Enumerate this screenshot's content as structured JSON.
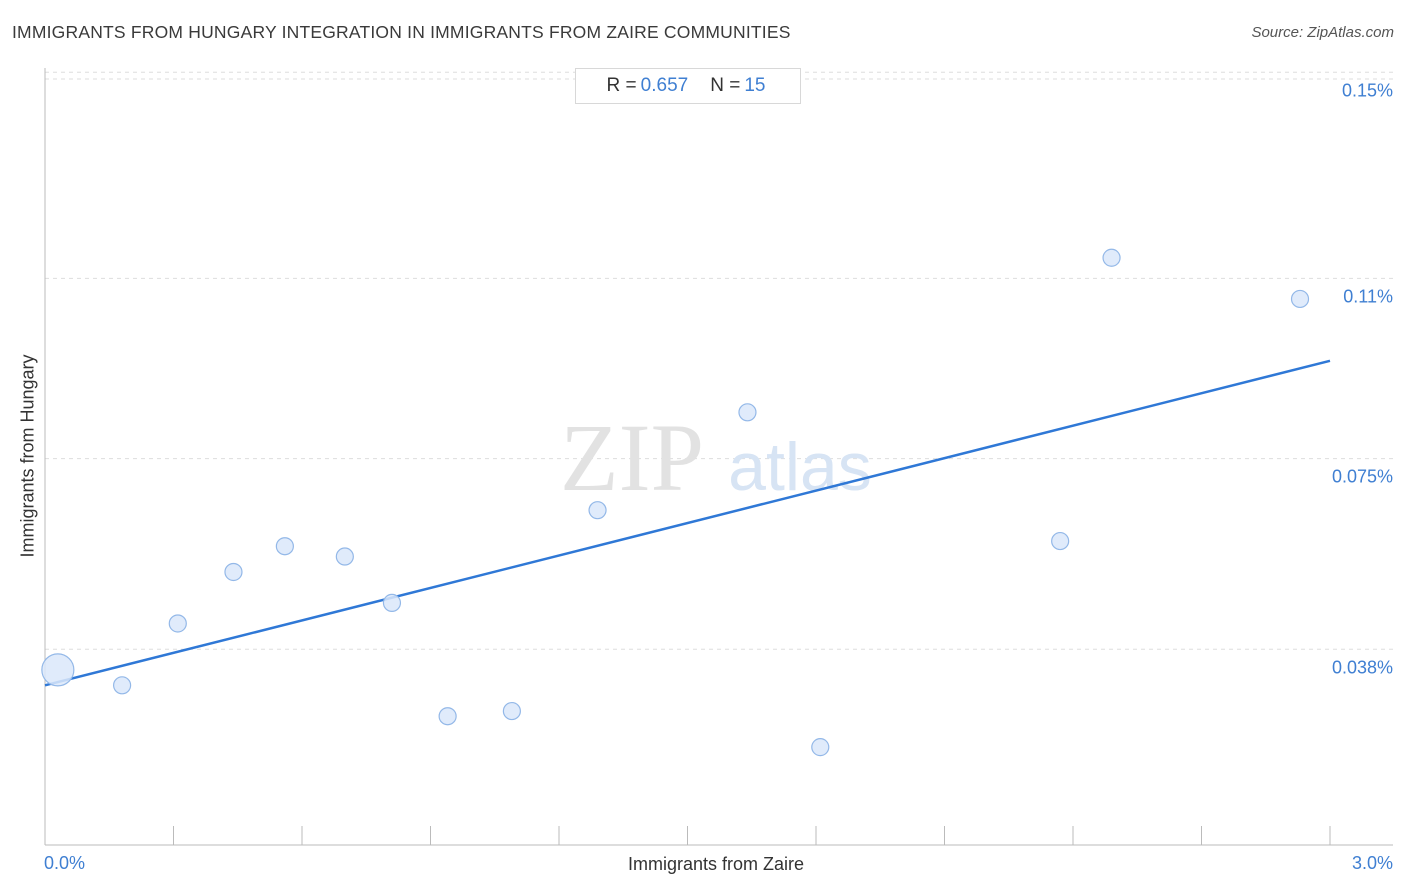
{
  "title": "IMMIGRANTS FROM HUNGARY INTEGRATION IN IMMIGRANTS FROM ZAIRE COMMUNITIES",
  "source": "Source: ZipAtlas.com",
  "stats": {
    "r_label": "R =",
    "r_value": "0.657",
    "n_label": "N =",
    "n_value": "15"
  },
  "watermark": {
    "zip": "ZIP",
    "atlas": "atlas"
  },
  "colors": {
    "accent": "#3f7fd2",
    "point_fill": "#dbe8fa",
    "point_stroke": "#93b8e8",
    "trend": "#2f78d6",
    "grid": "#dddddd"
  },
  "chart_data": {
    "type": "scatter",
    "title": "IMMIGRANTS FROM HUNGARY INTEGRATION IN IMMIGRANTS FROM ZAIRE COMMUNITIES",
    "xlabel": "Immigrants from Zaire",
    "ylabel": "Immigrants from Hungary",
    "xlim": [
      0,
      3.0
    ],
    "ylim": [
      0.0,
      0.152
    ],
    "x_tick_labels": [
      "0.0%",
      "3.0%"
    ],
    "y_ticks": [
      {
        "value": 0.15,
        "label": "0.15%"
      },
      {
        "value": 0.11,
        "label": "0.11%"
      },
      {
        "value": 0.075,
        "label": "0.075%"
      },
      {
        "value": 0.038,
        "label": "0.038%"
      }
    ],
    "grid": true,
    "points": [
      {
        "x": 0.03,
        "y": 0.034,
        "size": 3
      },
      {
        "x": 0.18,
        "y": 0.031,
        "size": 1
      },
      {
        "x": 0.31,
        "y": 0.043,
        "size": 1
      },
      {
        "x": 0.44,
        "y": 0.053,
        "size": 1
      },
      {
        "x": 0.56,
        "y": 0.058,
        "size": 1
      },
      {
        "x": 0.7,
        "y": 0.056,
        "size": 1
      },
      {
        "x": 0.81,
        "y": 0.047,
        "size": 1
      },
      {
        "x": 0.94,
        "y": 0.025,
        "size": 1
      },
      {
        "x": 1.09,
        "y": 0.026,
        "size": 1
      },
      {
        "x": 1.29,
        "y": 0.065,
        "size": 1
      },
      {
        "x": 1.64,
        "y": 0.084,
        "size": 1
      },
      {
        "x": 1.81,
        "y": 0.019,
        "size": 1
      },
      {
        "x": 2.37,
        "y": 0.059,
        "size": 1
      },
      {
        "x": 2.49,
        "y": 0.114,
        "size": 1
      },
      {
        "x": 2.93,
        "y": 0.106,
        "size": 1
      }
    ],
    "trendline": {
      "x": [
        0,
        3.0
      ],
      "y": [
        0.031,
        0.094
      ]
    }
  }
}
